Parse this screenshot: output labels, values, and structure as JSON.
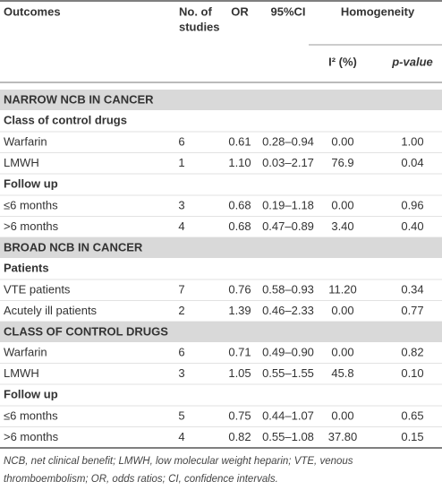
{
  "header": {
    "outcomes": "Outcomes",
    "studies": [
      "No. of",
      "studies"
    ],
    "or": "OR",
    "ci": "95%CI",
    "homogeneity": "Homogeneity",
    "i2": "I² (%)",
    "p": "p-value"
  },
  "sections": [
    {
      "title": "NARROW NCB IN CANCER",
      "groups": [
        {
          "title": "Class of control drugs",
          "rows": [
            [
              "Warfarin",
              "6",
              "0.61",
              "0.28–0.94",
              "0.00",
              "1.00"
            ],
            [
              "LMWH",
              "1",
              "1.10",
              "0.03–2.17",
              "76.9",
              "0.04"
            ]
          ]
        },
        {
          "title": "Follow up",
          "rows": [
            [
              "≤6 months",
              "3",
              "0.68",
              "0.19–1.18",
              "0.00",
              "0.96"
            ],
            [
              ">6 months",
              "4",
              "0.68",
              "0.47–0.89",
              "3.40",
              "0.40"
            ]
          ]
        }
      ]
    },
    {
      "title": "BROAD NCB IN CANCER",
      "groups": [
        {
          "title": "Patients",
          "rows": [
            [
              "VTE patients",
              "7",
              "0.76",
              "0.58–0.93",
              "11.20",
              "0.34"
            ],
            [
              "Acutely ill patients",
              "2",
              "1.39",
              "0.46–2.33",
              "0.00",
              "0.77"
            ]
          ]
        }
      ]
    },
    {
      "title": "CLASS OF CONTROL DRUGS",
      "groups": [
        {
          "rows": [
            [
              "Warfarin",
              "6",
              "0.71",
              "0.49–0.90",
              "0.00",
              "0.82"
            ],
            [
              "LMWH",
              "3",
              "1.05",
              "0.55–1.55",
              "45.8",
              "0.10"
            ]
          ]
        },
        {
          "title": "Follow up",
          "rows": [
            [
              "≤6 months",
              "5",
              "0.75",
              "0.44–1.07",
              "0.00",
              "0.65"
            ],
            [
              ">6 months",
              "4",
              "0.82",
              "0.55–1.08",
              "37.80",
              "0.15"
            ]
          ]
        }
      ]
    }
  ],
  "footnote": [
    "NCB, net clinical benefit; LMWH, low molecular weight heparin; VTE, venous",
    "thromboembolism; OR, odds ratios; CI, confidence intervals."
  ]
}
